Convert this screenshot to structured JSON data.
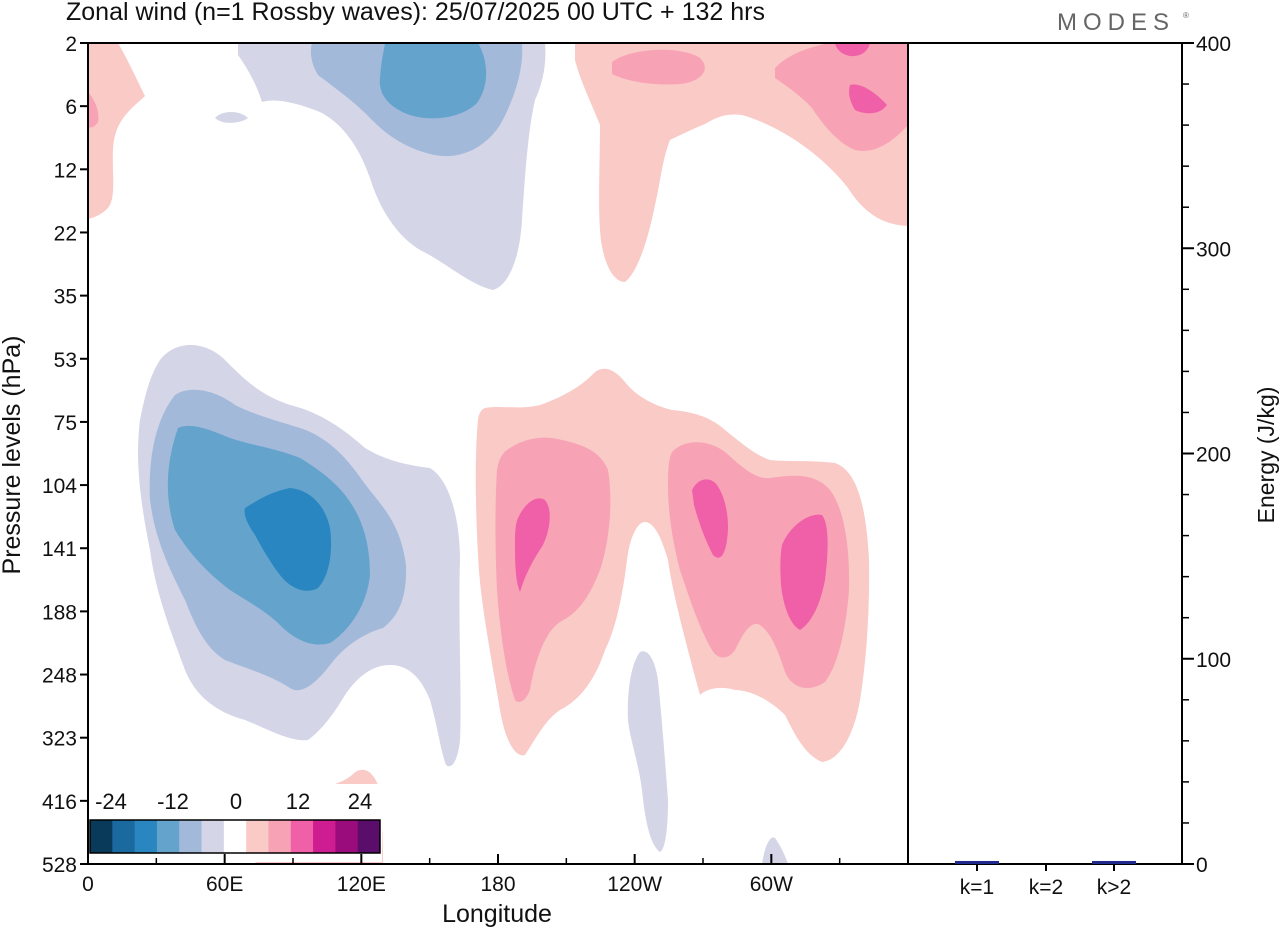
{
  "title": "Zonal wind (n=1 Rossby waves):  25/07/2025  00 UTC  + 132 hrs",
  "logo": "MODES",
  "logo_mark": "®",
  "chart_data": [
    {
      "type": "contour",
      "field": "Zonal wind (n=1 Rossby waves)",
      "xlabel": "Longitude",
      "ylabel": "Pressure levels (hPa)",
      "x_ticks": [
        "0",
        "60E",
        "120E",
        "180",
        "120W",
        "60W"
      ],
      "x_tick_degrees_east": [
        0,
        60,
        120,
        180,
        240,
        300
      ],
      "x_range_degrees_east": [
        0,
        360
      ],
      "y_ticks": [
        "2",
        "6",
        "12",
        "22",
        "35",
        "53",
        "75",
        "104",
        "141",
        "188",
        "248",
        "323",
        "416",
        "528"
      ],
      "y_range_hpa": [
        2,
        528
      ],
      "contour_levels": [
        -30,
        -24,
        -18,
        -12,
        -6,
        -3,
        3,
        6,
        12,
        18,
        24,
        30
      ],
      "colorbar_labels": [
        "-24",
        "-12",
        "0",
        "12",
        "24"
      ],
      "colorbar_colors": [
        "#0a3a5a",
        "#1a6aa0",
        "#2a86c0",
        "#64a3cc",
        "#a2b9da",
        "#d4d5e7",
        "#ffffff",
        "#f9cac6",
        "#f8a2b6",
        "#f060a8",
        "#cd1d90",
        "#9a0c7c",
        "#5a0d6a"
      ],
      "colors": {
        "neg_weak": "#d4d5e7",
        "neg_mid": "#a2b9da",
        "neg_strong": "#64a3cc",
        "neg_max": "#2a86c0",
        "pos_weak": "#f9cac6",
        "pos_mid": "#f8a2b6",
        "pos_strong": "#f060a8"
      }
    },
    {
      "type": "bar",
      "categories": [
        "k=1",
        "k=2",
        "k>2"
      ],
      "values": [
        0.5,
        0,
        0.5
      ],
      "ylabel": "Energy (J/kg)",
      "ylim": [
        0,
        400
      ],
      "y_ticks": [
        "0",
        "100",
        "200",
        "300",
        "400"
      ],
      "bar_color": "#1f2a8c"
    }
  ]
}
